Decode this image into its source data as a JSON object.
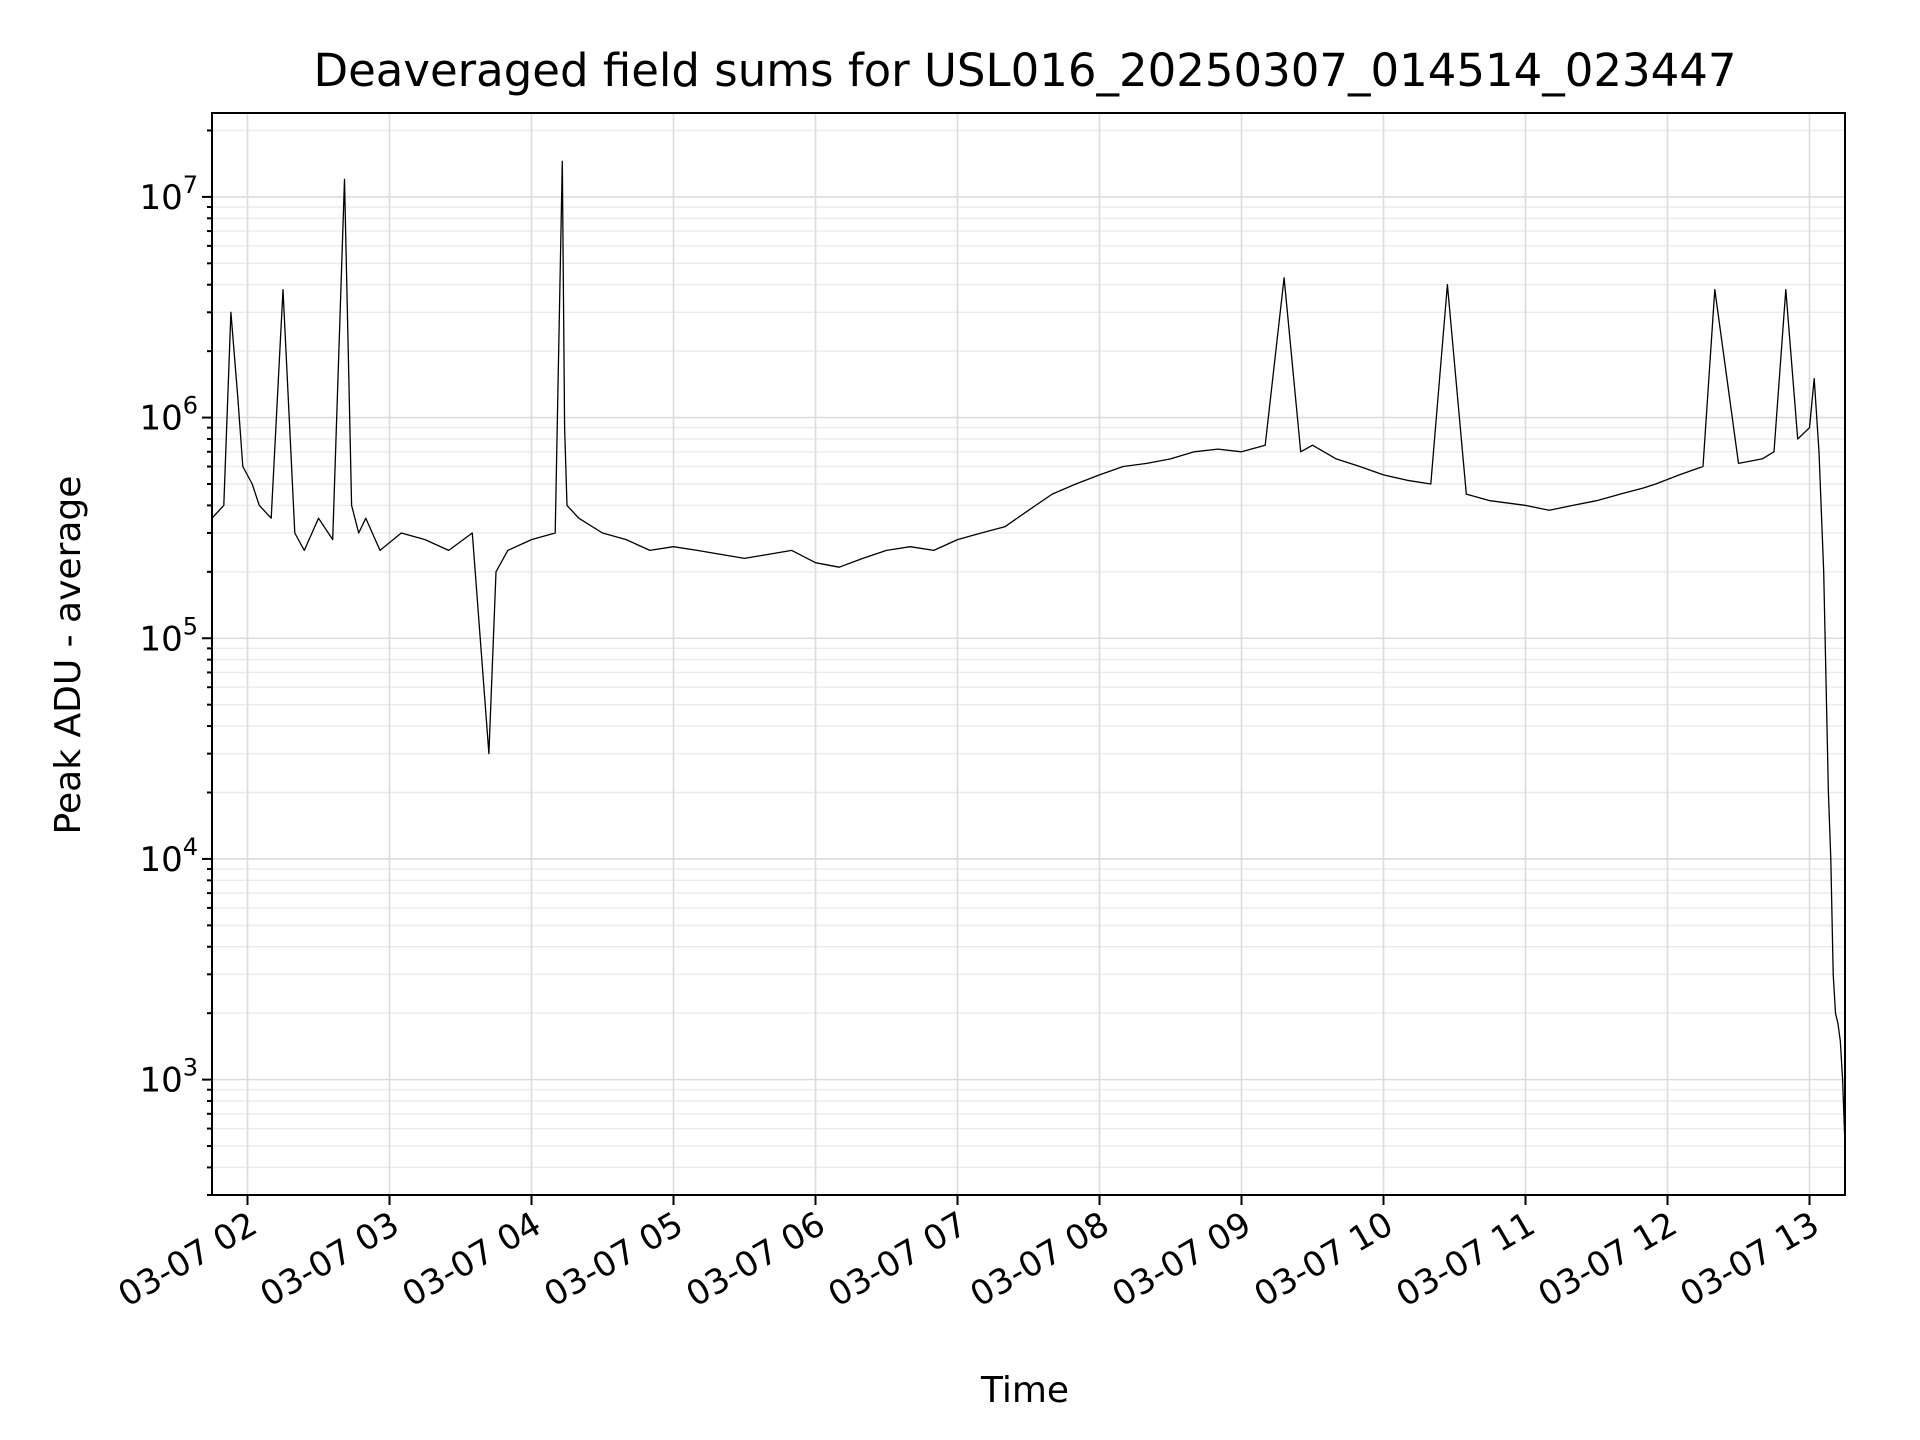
{
  "chart_data": {
    "type": "line",
    "title": "Deaveraged field sums for USL016_20250307_014514_023447",
    "xlabel": "Time",
    "ylabel": "Peak ADU - average",
    "yscale": "log",
    "ylim": [
      300,
      24000000
    ],
    "xlim": [
      "2025-03-07 01:45",
      "2025-03-07 13:15"
    ],
    "grid": "major-and-minor",
    "x_ticks": [
      {
        "value": "2025-03-07 02:00",
        "label": "03-07 02"
      },
      {
        "value": "2025-03-07 03:00",
        "label": "03-07 03"
      },
      {
        "value": "2025-03-07 04:00",
        "label": "03-07 04"
      },
      {
        "value": "2025-03-07 05:00",
        "label": "03-07 05"
      },
      {
        "value": "2025-03-07 06:00",
        "label": "03-07 06"
      },
      {
        "value": "2025-03-07 07:00",
        "label": "03-07 07"
      },
      {
        "value": "2025-03-07 08:00",
        "label": "03-07 08"
      },
      {
        "value": "2025-03-07 09:00",
        "label": "03-07 09"
      },
      {
        "value": "2025-03-07 10:00",
        "label": "03-07 10"
      },
      {
        "value": "2025-03-07 11:00",
        "label": "03-07 11"
      },
      {
        "value": "2025-03-07 12:00",
        "label": "03-07 12"
      },
      {
        "value": "2025-03-07 13:00",
        "label": "03-07 13"
      }
    ],
    "y_ticks": [
      {
        "value": 1000,
        "base": "10",
        "exp": "3"
      },
      {
        "value": 10000,
        "base": "10",
        "exp": "4"
      },
      {
        "value": 100000,
        "base": "10",
        "exp": "5"
      },
      {
        "value": 1000000,
        "base": "10",
        "exp": "6"
      },
      {
        "value": 10000000,
        "base": "10",
        "exp": "7"
      }
    ],
    "series": [
      {
        "color": "#000000",
        "x": [
          "2025-03-07 01:45",
          "2025-03-07 01:50",
          "2025-03-07 01:53",
          "2025-03-07 01:56",
          "2025-03-07 01:58",
          "2025-03-07 02:02",
          "2025-03-07 02:05",
          "2025-03-07 02:10",
          "2025-03-07 02:15",
          "2025-03-07 02:20",
          "2025-03-07 02:24",
          "2025-03-07 02:30",
          "2025-03-07 02:36",
          "2025-03-07 02:41",
          "2025-03-07 02:44",
          "2025-03-07 02:47",
          "2025-03-07 02:50",
          "2025-03-07 02:56",
          "2025-03-07 03:05",
          "2025-03-07 03:15",
          "2025-03-07 03:25",
          "2025-03-07 03:35",
          "2025-03-07 03:42",
          "2025-03-07 03:45",
          "2025-03-07 03:50",
          "2025-03-07 04:00",
          "2025-03-07 04:10",
          "2025-03-07 04:13",
          "2025-03-07 04:14",
          "2025-03-07 04:15",
          "2025-03-07 04:20",
          "2025-03-07 04:30",
          "2025-03-07 04:40",
          "2025-03-07 04:50",
          "2025-03-07 05:00",
          "2025-03-07 05:10",
          "2025-03-07 05:20",
          "2025-03-07 05:30",
          "2025-03-07 05:40",
          "2025-03-07 05:50",
          "2025-03-07 06:00",
          "2025-03-07 06:10",
          "2025-03-07 06:20",
          "2025-03-07 06:30",
          "2025-03-07 06:40",
          "2025-03-07 06:50",
          "2025-03-07 07:00",
          "2025-03-07 07:10",
          "2025-03-07 07:20",
          "2025-03-07 07:30",
          "2025-03-07 07:40",
          "2025-03-07 07:50",
          "2025-03-07 08:00",
          "2025-03-07 08:10",
          "2025-03-07 08:20",
          "2025-03-07 08:30",
          "2025-03-07 08:40",
          "2025-03-07 08:50",
          "2025-03-07 09:00",
          "2025-03-07 09:10",
          "2025-03-07 09:18",
          "2025-03-07 09:25",
          "2025-03-07 09:30",
          "2025-03-07 09:40",
          "2025-03-07 09:50",
          "2025-03-07 10:00",
          "2025-03-07 10:10",
          "2025-03-07 10:20",
          "2025-03-07 10:27",
          "2025-03-07 10:35",
          "2025-03-07 10:45",
          "2025-03-07 11:00",
          "2025-03-07 11:10",
          "2025-03-07 11:20",
          "2025-03-07 11:30",
          "2025-03-07 11:40",
          "2025-03-07 11:50",
          "2025-03-07 11:55",
          "2025-03-07 12:05",
          "2025-03-07 12:15",
          "2025-03-07 12:20",
          "2025-03-07 12:30",
          "2025-03-07 12:40",
          "2025-03-07 12:45",
          "2025-03-07 12:50",
          "2025-03-07 12:55",
          "2025-03-07 13:00",
          "2025-03-07 13:02",
          "2025-03-07 13:04",
          "2025-03-07 13:06",
          "2025-03-07 13:08",
          "2025-03-07 13:09",
          "2025-03-07 13:10",
          "2025-03-07 13:11",
          "2025-03-07 13:12",
          "2025-03-07 13:13",
          "2025-03-07 13:14",
          "2025-03-07 13:15"
        ],
        "y": [
          350000,
          400000,
          3000000,
          1200000,
          600000,
          500000,
          400000,
          350000,
          3800000,
          300000,
          250000,
          350000,
          280000,
          12000000,
          400000,
          300000,
          350000,
          250000,
          300000,
          280000,
          250000,
          300000,
          30000,
          200000,
          250000,
          280000,
          300000,
          14500000,
          900000,
          400000,
          350000,
          300000,
          280000,
          250000,
          260000,
          250000,
          240000,
          230000,
          240000,
          250000,
          220000,
          210000,
          230000,
          250000,
          260000,
          250000,
          280000,
          300000,
          320000,
          380000,
          450000,
          500000,
          550000,
          600000,
          620000,
          650000,
          700000,
          720000,
          700000,
          750000,
          4300000,
          700000,
          750000,
          650000,
          600000,
          550000,
          520000,
          500000,
          4000000,
          450000,
          420000,
          400000,
          380000,
          400000,
          420000,
          450000,
          480000,
          500000,
          550000,
          600000,
          3800000,
          620000,
          650000,
          700000,
          3800000,
          800000,
          900000,
          1500000,
          700000,
          200000,
          20000,
          10000,
          3000,
          2000,
          1800,
          1500,
          1000,
          500
        ]
      }
    ]
  }
}
